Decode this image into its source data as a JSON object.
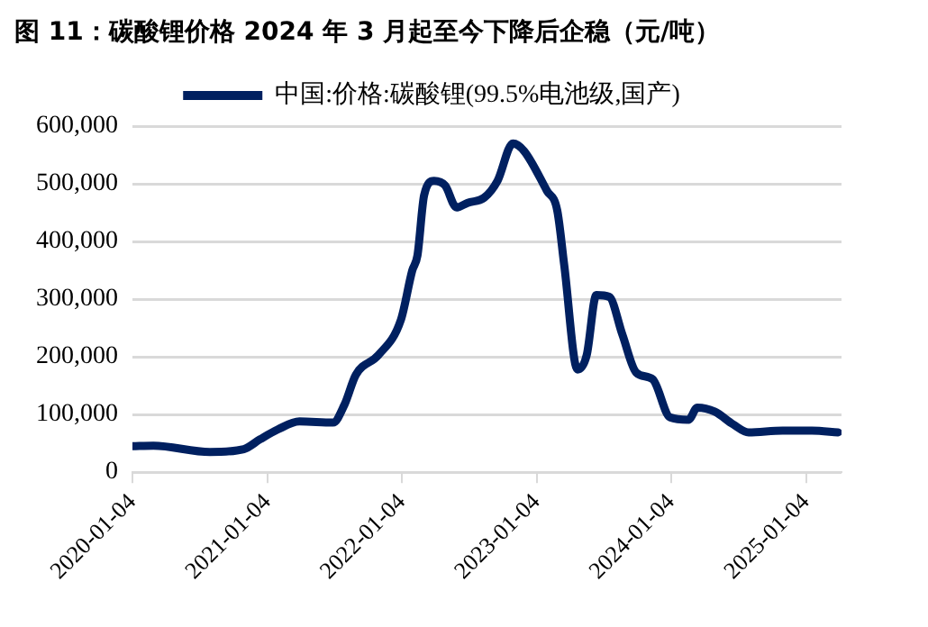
{
  "chart_data": {
    "type": "line",
    "title": "图 11：碳酸锂价格 2024 年 3 月起至今下降后企稳（元/吨）",
    "x": [
      "2020-01-04",
      "2020-03-01",
      "2020-08-01",
      "2020-11-01",
      "2020-12-15",
      "2021-02-01",
      "2021-04-01",
      "2021-07-01",
      "2021-08-01",
      "2021-09-01",
      "2021-11-01",
      "2022-01-01",
      "2022-02-01",
      "2022-02-15",
      "2022-03-05",
      "2022-04-01",
      "2022-05-01",
      "2022-06-01",
      "2022-07-01",
      "2022-08-15",
      "2022-09-20",
      "2022-11-01",
      "2022-12-01",
      "2023-02-01",
      "2023-03-01",
      "2023-03-20",
      "2023-04-25",
      "2023-05-20",
      "2023-06-15",
      "2023-07-20",
      "2023-08-25",
      "2023-10-01",
      "2023-11-15",
      "2024-01-01",
      "2024-02-20",
      "2024-03-15",
      "2024-05-01",
      "2024-06-20",
      "2024-08-01",
      "2024-11-01",
      "2025-01-20",
      "2025-04-01"
    ],
    "series": [
      {
        "name": "中国:价格:碳酸锂(99.5%电池级,国产)",
        "color": "#002060",
        "values": [
          45000,
          46000,
          35000,
          40000,
          57000,
          74000,
          88000,
          86000,
          117000,
          169000,
          203000,
          264000,
          350000,
          376000,
          480000,
          505000,
          497000,
          459000,
          467000,
          476000,
          505000,
          570000,
          557000,
          488000,
          454000,
          359000,
          178000,
          203000,
          307000,
          304000,
          238000,
          173000,
          161000,
          95000,
          91000,
          112000,
          105000,
          83000,
          69000,
          72000,
          72000,
          69000
        ]
      }
    ],
    "xlim": [
      "2020-01-04",
      "2025-04-10"
    ],
    "xticks": [
      "2020-01-04",
      "2021-01-04",
      "2022-01-04",
      "2023-01-04",
      "2024-01-04",
      "2025-01-04"
    ],
    "ylim": [
      0,
      600000
    ],
    "yticks": [
      0,
      {
        "value": 100000,
        "label": "100,000"
      },
      {
        "value": 200000,
        "label": "200,000"
      },
      {
        "value": 300000,
        "label": "300,000"
      },
      {
        "value": 400000,
        "label": "400,000"
      },
      {
        "value": 500000,
        "label": "500,000"
      },
      {
        "value": 600000,
        "label": "600,000"
      }
    ],
    "grid": "y",
    "legend": "top",
    "marker": "none",
    "line_style": "solid"
  }
}
